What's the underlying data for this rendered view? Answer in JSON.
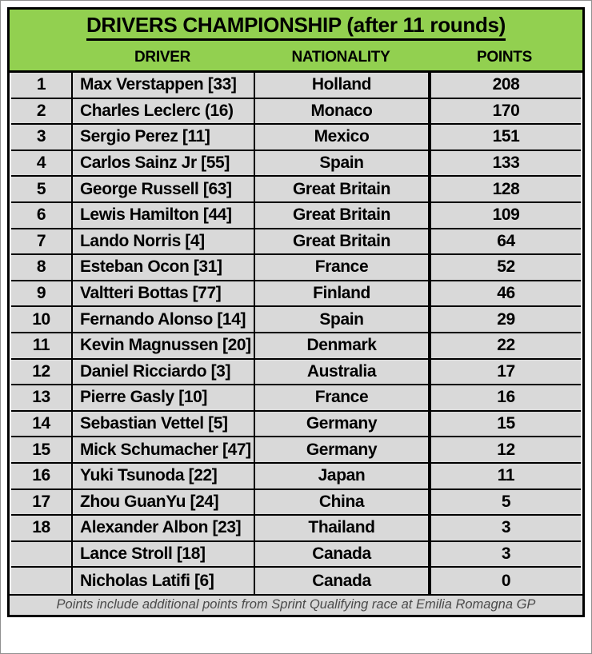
{
  "chart_data": {
    "type": "table",
    "title": "DRIVERS CHAMPIONSHIP (after 11 rounds)",
    "columns": [
      "DRIVER",
      "NATIONALITY",
      "POINTS"
    ],
    "rows": [
      {
        "pos": "1",
        "driver": "Max Verstappen [33]",
        "nationality": "Holland",
        "points": "208"
      },
      {
        "pos": "2",
        "driver": "Charles Leclerc (16)",
        "nationality": "Monaco",
        "points": "170"
      },
      {
        "pos": "3",
        "driver": "Sergio Perez [11]",
        "nationality": "Mexico",
        "points": "151"
      },
      {
        "pos": "4",
        "driver": "Carlos Sainz Jr [55]",
        "nationality": "Spain",
        "points": "133"
      },
      {
        "pos": "5",
        "driver": "George Russell [63]",
        "nationality": "Great Britain",
        "points": "128"
      },
      {
        "pos": "6",
        "driver": "Lewis Hamilton [44]",
        "nationality": "Great Britain",
        "points": "109"
      },
      {
        "pos": "7",
        "driver": "Lando Norris [4]",
        "nationality": "Great Britain",
        "points": "64"
      },
      {
        "pos": "8",
        "driver": "Esteban Ocon [31]",
        "nationality": "France",
        "points": "52"
      },
      {
        "pos": "9",
        "driver": "Valtteri Bottas [77]",
        "nationality": "Finland",
        "points": "46"
      },
      {
        "pos": "10",
        "driver": "Fernando Alonso [14]",
        "nationality": "Spain",
        "points": "29"
      },
      {
        "pos": "11",
        "driver": "Kevin Magnussen [20]",
        "nationality": "Denmark",
        "points": "22"
      },
      {
        "pos": "12",
        "driver": "Daniel Ricciardo [3]",
        "nationality": "Australia",
        "points": "17"
      },
      {
        "pos": "13",
        "driver": "Pierre Gasly [10]",
        "nationality": "France",
        "points": "16"
      },
      {
        "pos": "14",
        "driver": "Sebastian Vettel [5]",
        "nationality": "Germany",
        "points": "15"
      },
      {
        "pos": "15",
        "driver": "Mick Schumacher [47]",
        "nationality": "Germany",
        "points": "12"
      },
      {
        "pos": "16",
        "driver": "Yuki Tsunoda [22]",
        "nationality": "Japan",
        "points": "11"
      },
      {
        "pos": "17",
        "driver": "Zhou GuanYu [24]",
        "nationality": "China",
        "points": "5"
      },
      {
        "pos": "18",
        "driver": "Alexander Albon [23]",
        "nationality": "Thailand",
        "points": "3"
      },
      {
        "pos": "",
        "driver": "Lance Stroll [18]",
        "nationality": "Canada",
        "points": "3"
      },
      {
        "pos": "",
        "driver": "Nicholas Latifi [6]",
        "nationality": "Canada",
        "points": "0"
      }
    ],
    "footnote": "Points include additional points from Sprint Qualifying race at Emilia Romagna GP"
  },
  "colors": {
    "header_green": "#92D050",
    "row_gray": "#D9D9D9",
    "border_black": "#000000",
    "footnote_gray": "#4A4A4A"
  }
}
